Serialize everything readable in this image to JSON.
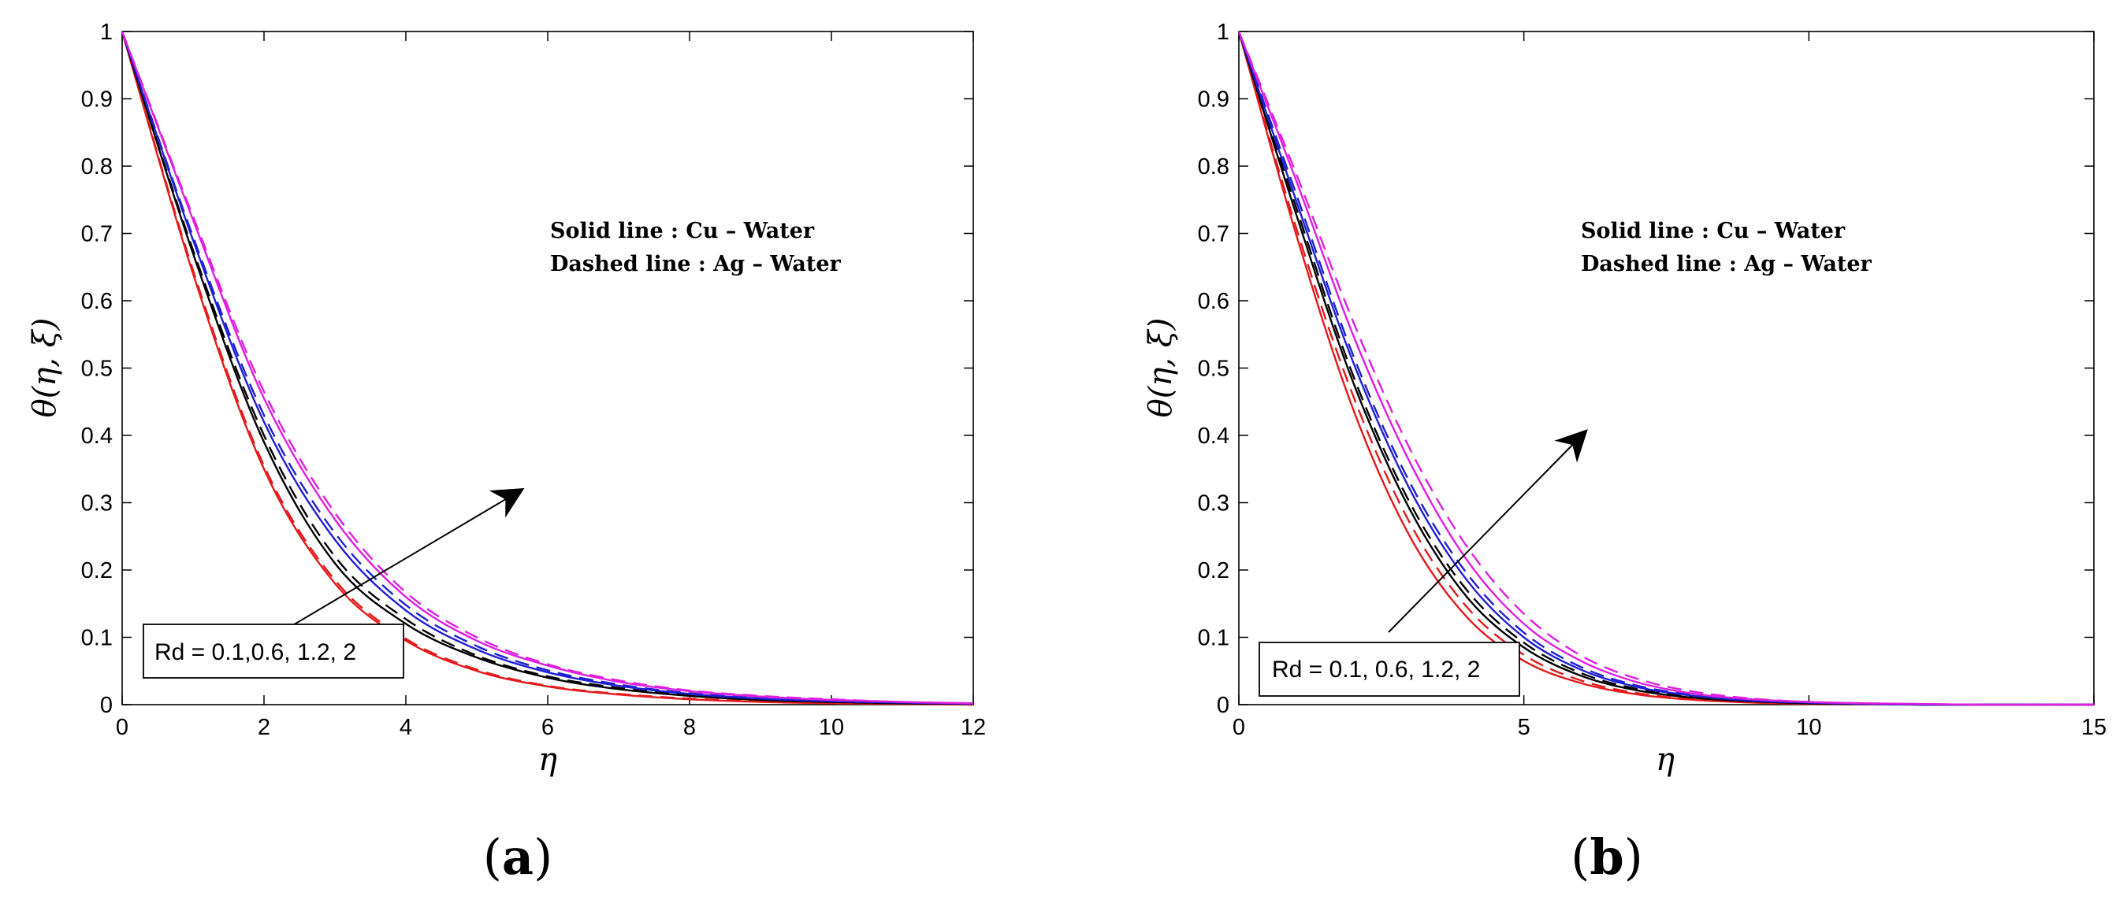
{
  "figure": {
    "panels": [
      {
        "label": "a",
        "legend_lines": [
          "Solid line : Cu – Water",
          "Dashed line : Ag – Water"
        ],
        "annotation": "Rd = 0.1,0.6, 1.2, 2",
        "ylabel": "θ(η, ξ)",
        "xlabel": "η"
      },
      {
        "label": "b",
        "legend_lines": [
          "Solid line : Cu – Water",
          "Dashed line : Ag – Water"
        ],
        "annotation": "Rd = 0.1, 0.6, 1.2, 2",
        "ylabel": "θ(η, ξ)",
        "xlabel": "η"
      }
    ]
  },
  "colors": {
    "red": "#e41a1c",
    "black": "#000000",
    "blue": "#1f1fd6",
    "magenta": "#e01ee0"
  },
  "chart_data": [
    {
      "type": "line",
      "title": "(a)",
      "xlabel": "η",
      "ylabel": "θ(η, ξ)",
      "xlim": [
        0,
        12
      ],
      "ylim": [
        0,
        1
      ],
      "xticks": [
        0,
        2,
        4,
        6,
        8,
        10,
        12
      ],
      "yticks": [
        0,
        0.1,
        0.2,
        0.3,
        0.4,
        0.5,
        0.6,
        0.7,
        0.8,
        0.9,
        1
      ],
      "x": [
        0,
        1,
        2,
        3,
        4,
        5,
        6,
        7,
        8,
        9,
        10,
        11,
        12
      ],
      "series": [
        {
          "name": "Cu-Water, Rd = 0.1",
          "style": "solid",
          "color": "red",
          "values": [
            1,
            0.64,
            0.35,
            0.18,
            0.095,
            0.05,
            0.027,
            0.015,
            0.008,
            0.004,
            0.002,
            0.001,
            0
          ]
        },
        {
          "name": "Ag-Water, Rd = 0.1",
          "style": "dashed",
          "color": "red",
          "values": [
            1,
            0.645,
            0.355,
            0.185,
            0.098,
            0.052,
            0.028,
            0.016,
            0.009,
            0.005,
            0.002,
            0.001,
            0
          ]
        },
        {
          "name": "Cu-Water, Rd = 0.6",
          "style": "solid",
          "color": "black",
          "values": [
            1,
            0.67,
            0.39,
            0.21,
            0.12,
            0.07,
            0.04,
            0.023,
            0.013,
            0.007,
            0.004,
            0.002,
            0.001
          ]
        },
        {
          "name": "Ag-Water, Rd = 0.6",
          "style": "dashed",
          "color": "black",
          "values": [
            1,
            0.675,
            0.4,
            0.22,
            0.127,
            0.073,
            0.042,
            0.025,
            0.014,
            0.008,
            0.004,
            0.002,
            0.001
          ]
        },
        {
          "name": "Cu-Water, Rd = 1.2",
          "style": "solid",
          "color": "blue",
          "values": [
            1,
            0.69,
            0.42,
            0.245,
            0.14,
            0.082,
            0.048,
            0.028,
            0.016,
            0.009,
            0.005,
            0.003,
            0.001
          ]
        },
        {
          "name": "Ag-Water, Rd = 1.2",
          "style": "dashed",
          "color": "blue",
          "values": [
            1,
            0.695,
            0.43,
            0.255,
            0.148,
            0.087,
            0.051,
            0.03,
            0.017,
            0.01,
            0.006,
            0.003,
            0.002
          ]
        },
        {
          "name": "Cu-Water, Rd = 2",
          "style": "solid",
          "color": "magenta",
          "values": [
            1,
            0.72,
            0.455,
            0.275,
            0.16,
            0.095,
            0.058,
            0.034,
            0.02,
            0.012,
            0.007,
            0.004,
            0.002
          ]
        },
        {
          "name": "Ag-Water, Rd = 2",
          "style": "dashed",
          "color": "magenta",
          "values": [
            1,
            0.725,
            0.465,
            0.285,
            0.167,
            0.1,
            0.06,
            0.036,
            0.021,
            0.013,
            0.008,
            0.004,
            0.002
          ]
        }
      ]
    },
    {
      "type": "line",
      "title": "(b)",
      "xlabel": "η",
      "ylabel": "θ(η, ξ)",
      "xlim": [
        0,
        15
      ],
      "ylim": [
        0,
        1
      ],
      "xticks": [
        0,
        5,
        10,
        15
      ],
      "yticks": [
        0,
        0.1,
        0.2,
        0.3,
        0.4,
        0.5,
        0.6,
        0.7,
        0.8,
        0.9,
        1
      ],
      "x": [
        0,
        1,
        2,
        3,
        4,
        5,
        6,
        7,
        8,
        9,
        10,
        11,
        12,
        13,
        14,
        15
      ],
      "series": [
        {
          "name": "Cu-Water, Rd = 0.1",
          "style": "solid",
          "color": "red",
          "values": [
            1,
            0.7,
            0.44,
            0.25,
            0.13,
            0.065,
            0.032,
            0.015,
            0.007,
            0.003,
            0.001,
            0.0005,
            0,
            0,
            0,
            0
          ]
        },
        {
          "name": "Ag-Water, Rd = 0.1",
          "style": "dashed",
          "color": "red",
          "values": [
            1,
            0.71,
            0.46,
            0.27,
            0.145,
            0.074,
            0.036,
            0.017,
            0.008,
            0.004,
            0.002,
            0.001,
            0,
            0,
            0,
            0
          ]
        },
        {
          "name": "Cu-Water, Rd = 0.6",
          "style": "solid",
          "color": "black",
          "values": [
            1,
            0.73,
            0.48,
            0.29,
            0.16,
            0.085,
            0.043,
            0.021,
            0.01,
            0.005,
            0.002,
            0.001,
            0,
            0,
            0,
            0
          ]
        },
        {
          "name": "Ag-Water, Rd = 0.6",
          "style": "dashed",
          "color": "black",
          "values": [
            1,
            0.74,
            0.49,
            0.3,
            0.17,
            0.092,
            0.047,
            0.023,
            0.011,
            0.005,
            0.002,
            0.001,
            0,
            0,
            0,
            0
          ]
        },
        {
          "name": "Cu-Water, Rd = 1.2",
          "style": "solid",
          "color": "blue",
          "values": [
            1,
            0.75,
            0.51,
            0.32,
            0.185,
            0.1,
            0.052,
            0.026,
            0.013,
            0.006,
            0.003,
            0.001,
            0,
            0,
            0,
            0
          ]
        },
        {
          "name": "Ag-Water, Rd = 1.2",
          "style": "dashed",
          "color": "blue",
          "values": [
            1,
            0.76,
            0.52,
            0.33,
            0.195,
            0.107,
            0.056,
            0.028,
            0.014,
            0.007,
            0.003,
            0.001,
            0,
            0,
            0,
            0
          ]
        },
        {
          "name": "Cu-Water, Rd = 2",
          "style": "solid",
          "color": "magenta",
          "values": [
            1,
            0.78,
            0.55,
            0.36,
            0.215,
            0.12,
            0.065,
            0.033,
            0.016,
            0.008,
            0.004,
            0.002,
            0.001,
            0,
            0,
            0
          ]
        },
        {
          "name": "Ag-Water, Rd = 2",
          "style": "dashed",
          "color": "magenta",
          "values": [
            1,
            0.79,
            0.57,
            0.38,
            0.235,
            0.135,
            0.073,
            0.038,
            0.019,
            0.009,
            0.004,
            0.002,
            0.001,
            0,
            0,
            0
          ]
        }
      ]
    }
  ]
}
